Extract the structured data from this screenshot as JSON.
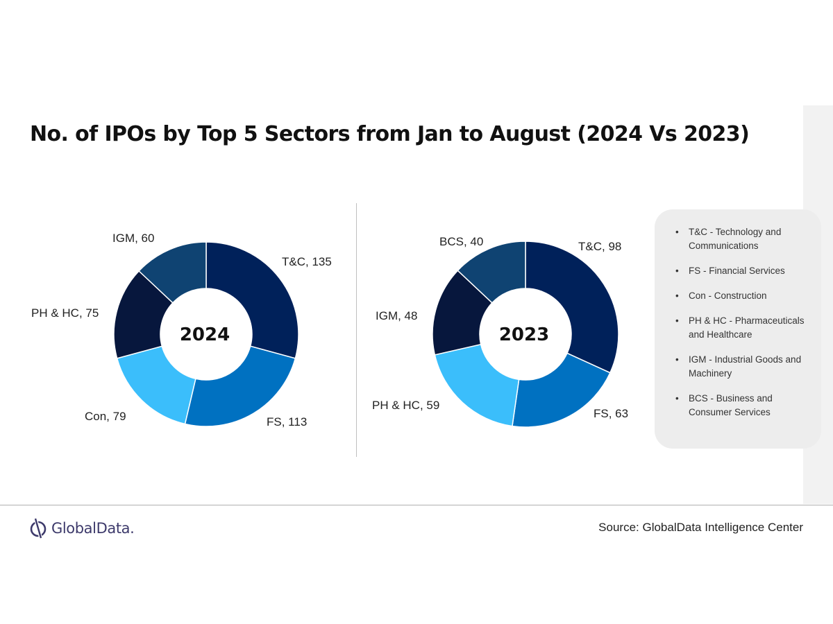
{
  "title": "No. of IPOs by Top 5 Sectors from Jan to August (2024 Vs 2023)",
  "colors": {
    "T&C": "#00215a",
    "FS": "#0071c1",
    "Con": "#3bbefb",
    "PH & HC": "#07173d",
    "IGM": "#0f4372",
    "BCS": "#0f4372",
    "IGM_2023": "#07173d",
    "PH & HC_2023": "#3bbefb"
  },
  "chart_data": [
    {
      "type": "pie",
      "center_label": "2024",
      "categories": [
        "T&C",
        "FS",
        "Con",
        "PH & HC",
        "IGM"
      ],
      "values": [
        135,
        113,
        79,
        75,
        60
      ],
      "labels": [
        "T&C, 135",
        "FS, 113",
        "Con, 79",
        "PH & HC, 75",
        "IGM, 60"
      ],
      "colors": [
        "#00215a",
        "#0071c1",
        "#3bbefb",
        "#07173d",
        "#0f4372"
      ]
    },
    {
      "type": "pie",
      "center_label": "2023",
      "categories": [
        "T&C",
        "FS",
        "PH & HC",
        "IGM",
        "BCS"
      ],
      "values": [
        98,
        63,
        59,
        48,
        40
      ],
      "labels": [
        "T&C, 98",
        "FS, 63",
        "PH & HC, 59",
        "IGM, 48",
        "BCS, 40"
      ],
      "colors": [
        "#00215a",
        "#0071c1",
        "#3bbefb",
        "#07173d",
        "#0f4372"
      ]
    }
  ],
  "legend": [
    "T&C - Technology and Communications",
    "FS - Financial Services",
    "Con - Construction",
    "PH & HC - Pharmaceuticals and Healthcare",
    "IGM - Industrial Goods and Machinery",
    "BCS - Business and Consumer Services"
  ],
  "footer": {
    "logo_text": "GlobalData.",
    "source": "Source: GlobalData Intelligence Center"
  }
}
